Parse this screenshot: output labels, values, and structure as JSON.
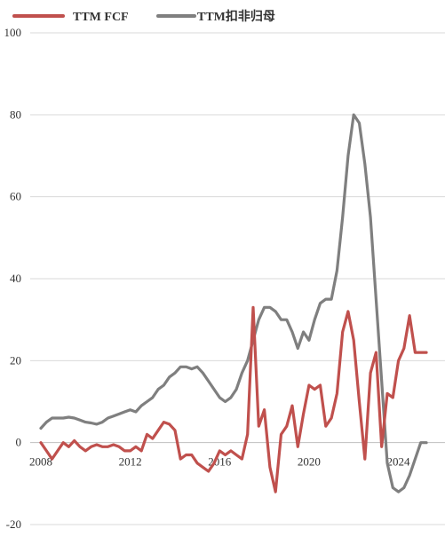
{
  "chart_data": {
    "type": "line",
    "title": "",
    "xlabel": "",
    "ylabel": "",
    "ylim": [
      -20,
      100
    ],
    "yticks": [
      -20,
      0,
      20,
      40,
      60,
      80,
      100
    ],
    "ytick_labels": [
      "-20",
      "0",
      "20",
      "40",
      "60",
      "80",
      "100"
    ],
    "xticks": [
      2008,
      2012,
      2016,
      2020,
      2024
    ],
    "xtick_labels": [
      "2008",
      "2012",
      "2016",
      "2020",
      "2024"
    ],
    "grid": "horizontal",
    "legend_position": "top-left",
    "series": [
      {
        "name": "TTM FCF",
        "color": "#c0504d",
        "x": [
          2008.0,
          2008.25,
          2008.5,
          2008.75,
          2009.0,
          2009.25,
          2009.5,
          2009.75,
          2010.0,
          2010.25,
          2010.5,
          2010.75,
          2011.0,
          2011.25,
          2011.5,
          2011.75,
          2012.0,
          2012.25,
          2012.5,
          2012.75,
          2013.0,
          2013.25,
          2013.5,
          2013.75,
          2014.0,
          2014.25,
          2014.5,
          2014.75,
          2015.0,
          2015.25,
          2015.5,
          2015.75,
          2016.0,
          2016.25,
          2016.5,
          2016.75,
          2017.0,
          2017.25,
          2017.5,
          2017.75,
          2018.0,
          2018.25,
          2018.5,
          2018.75,
          2019.0,
          2019.25,
          2019.5,
          2019.75,
          2020.0,
          2020.25,
          2020.5,
          2020.75,
          2021.0,
          2021.25,
          2021.5,
          2021.75,
          2022.0,
          2022.25,
          2022.5,
          2022.75,
          2023.0,
          2023.25,
          2023.5,
          2023.75,
          2024.0,
          2024.25,
          2024.5,
          2024.75,
          2025.0,
          2025.25
        ],
        "values": [
          0,
          -2,
          -4,
          -2,
          0,
          -1,
          0.5,
          -1,
          -2,
          -1,
          -0.5,
          -1,
          -1,
          -0.5,
          -1,
          -2,
          -2,
          -1,
          -2,
          2,
          1,
          3,
          5,
          4.5,
          3,
          -4,
          -3,
          -3,
          -5,
          -6,
          -7,
          -5,
          -2,
          -3,
          -2,
          -3,
          -4,
          2,
          33,
          4,
          8,
          -6,
          -12,
          2,
          4,
          9,
          -1,
          7,
          14,
          13,
          14,
          4,
          6,
          12,
          27,
          32,
          25,
          10,
          -4,
          17,
          22,
          -1,
          12,
          11,
          20,
          23,
          31,
          22,
          22,
          22
        ]
      },
      {
        "name": "TTM扣非归母",
        "color": "#7f7f7f",
        "x": [
          2008.0,
          2008.25,
          2008.5,
          2008.75,
          2009.0,
          2009.25,
          2009.5,
          2009.75,
          2010.0,
          2010.25,
          2010.5,
          2010.75,
          2011.0,
          2011.25,
          2011.5,
          2011.75,
          2012.0,
          2012.25,
          2012.5,
          2012.75,
          2013.0,
          2013.25,
          2013.5,
          2013.75,
          2014.0,
          2014.25,
          2014.5,
          2014.75,
          2015.0,
          2015.25,
          2015.5,
          2015.75,
          2016.0,
          2016.25,
          2016.5,
          2016.75,
          2017.0,
          2017.25,
          2017.5,
          2017.75,
          2018.0,
          2018.25,
          2018.5,
          2018.75,
          2019.0,
          2019.25,
          2019.5,
          2019.75,
          2020.0,
          2020.25,
          2020.5,
          2020.75,
          2021.0,
          2021.25,
          2021.5,
          2021.75,
          2022.0,
          2022.25,
          2022.5,
          2022.75,
          2023.0,
          2023.25,
          2023.5,
          2023.75,
          2024.0,
          2024.25,
          2024.5,
          2024.75,
          2025.0,
          2025.25
        ],
        "values": [
          3.5,
          5,
          6,
          6,
          6,
          6.2,
          6,
          5.5,
          5,
          4.8,
          4.5,
          5,
          6,
          6.5,
          7,
          7.5,
          8,
          7.5,
          9,
          10,
          11,
          13,
          14,
          16,
          17,
          18.5,
          18.5,
          18,
          18.5,
          17,
          15,
          13,
          11,
          10,
          11,
          13,
          17,
          20,
          25,
          30,
          33,
          33,
          32,
          30,
          30,
          27,
          23,
          27,
          25,
          30,
          34,
          35,
          35,
          42,
          55,
          70,
          80,
          78,
          68,
          55,
          35,
          15,
          -5,
          -11,
          -12,
          -11,
          -8,
          -4,
          0,
          0
        ]
      }
    ]
  }
}
